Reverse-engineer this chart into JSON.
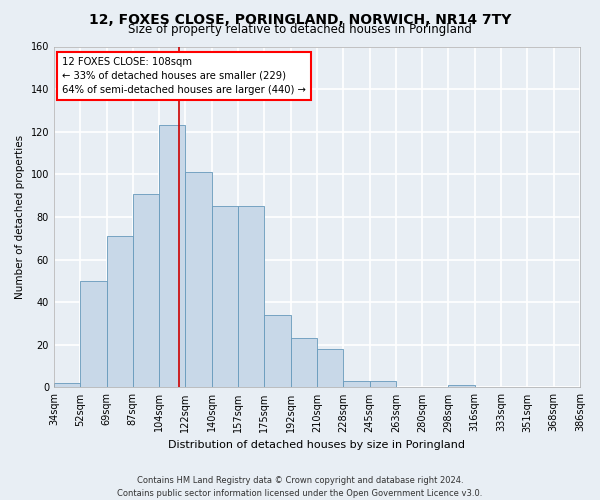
{
  "title": "12, FOXES CLOSE, PORINGLAND, NORWICH, NR14 7TY",
  "subtitle": "Size of property relative to detached houses in Poringland",
  "xlabel": "Distribution of detached houses by size in Poringland",
  "ylabel": "Number of detached properties",
  "bin_labels": [
    "34sqm",
    "52sqm",
    "69sqm",
    "87sqm",
    "104sqm",
    "122sqm",
    "140sqm",
    "157sqm",
    "175sqm",
    "192sqm",
    "210sqm",
    "228sqm",
    "245sqm",
    "263sqm",
    "280sqm",
    "298sqm",
    "316sqm",
    "333sqm",
    "351sqm",
    "368sqm",
    "386sqm"
  ],
  "bar_vals": [
    2,
    50,
    71,
    91,
    123,
    101,
    85,
    85,
    34,
    23,
    18,
    3,
    3,
    0,
    0,
    1,
    0,
    0,
    0,
    0
  ],
  "bar_color": "#c8d8e8",
  "bar_edge_color": "#6699bb",
  "vline_color": "#cc0000",
  "vline_x": 4.27,
  "ylim": [
    0,
    160
  ],
  "yticks": [
    0,
    20,
    40,
    60,
    80,
    100,
    120,
    140,
    160
  ],
  "annotation_text_line1": "12 FOXES CLOSE: 108sqm",
  "annotation_text_line2": "← 33% of detached houses are smaller (229)",
  "annotation_text_line3": "64% of semi-detached houses are larger (440) →",
  "background_color": "#e8eef4",
  "grid_color": "#ffffff",
  "footer_line1": "Contains HM Land Registry data © Crown copyright and database right 2024.",
  "footer_line2": "Contains public sector information licensed under the Open Government Licence v3.0."
}
